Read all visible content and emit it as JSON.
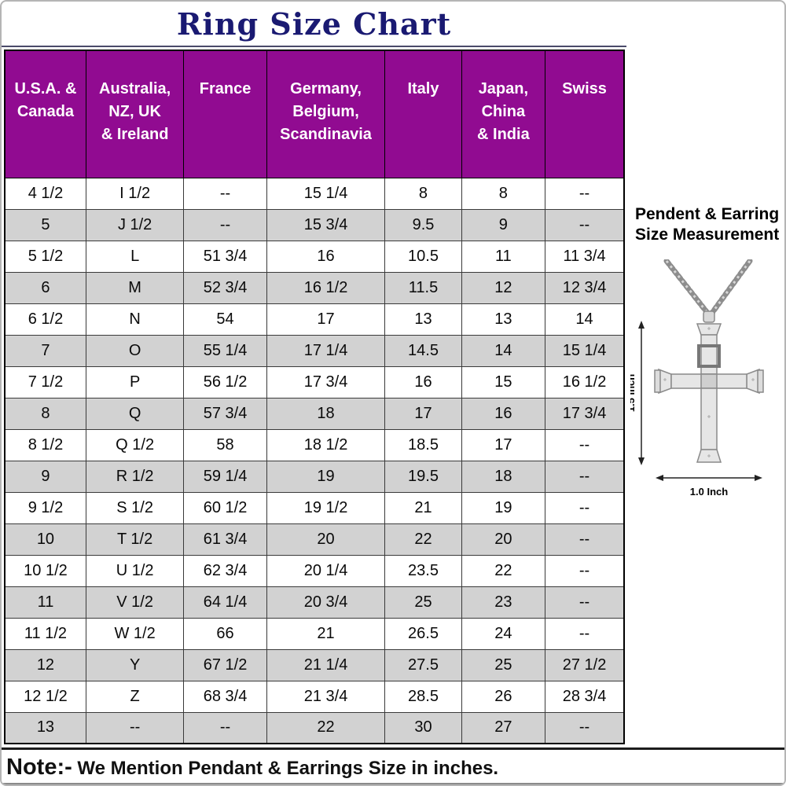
{
  "title": "Ring Size Chart",
  "table": {
    "headers": [
      "U.S.A. &\nCanada",
      "Australia,\nNZ, UK\n& Ireland",
      "France",
      "Germany,\nBelgium,\nScandinavia",
      "Italy",
      "Japan,\nChina\n& India",
      "Swiss"
    ],
    "rows": [
      [
        "4 1/2",
        "I 1/2",
        "--",
        "15 1/4",
        "8",
        "8",
        "--"
      ],
      [
        "5",
        "J 1/2",
        "--",
        "15 3/4",
        "9.5",
        "9",
        "--"
      ],
      [
        "5 1/2",
        "L",
        "51 3/4",
        "16",
        "10.5",
        "11",
        "11 3/4"
      ],
      [
        "6",
        "M",
        "52 3/4",
        "16 1/2",
        "11.5",
        "12",
        "12 3/4"
      ],
      [
        "6 1/2",
        "N",
        "54",
        "17",
        "13",
        "13",
        "14"
      ],
      [
        "7",
        "O",
        "55 1/4",
        "17 1/4",
        "14.5",
        "14",
        "15 1/4"
      ],
      [
        "7 1/2",
        "P",
        "56 1/2",
        "17 3/4",
        "16",
        "15",
        "16 1/2"
      ],
      [
        "8",
        "Q",
        "57 3/4",
        "18",
        "17",
        "16",
        "17 3/4"
      ],
      [
        "8 1/2",
        "Q 1/2",
        "58",
        "18 1/2",
        "18.5",
        "17",
        "--"
      ],
      [
        "9",
        "R 1/2",
        "59 1/4",
        "19",
        "19.5",
        "18",
        "--"
      ],
      [
        "9 1/2",
        "S 1/2",
        "60 1/2",
        "19 1/2",
        "21",
        "19",
        "--"
      ],
      [
        "10",
        "T 1/2",
        "61 3/4",
        "20",
        "22",
        "20",
        "--"
      ],
      [
        "10 1/2",
        "U 1/2",
        "62 3/4",
        "20 1/4",
        "23.5",
        "22",
        "--"
      ],
      [
        "11",
        "V 1/2",
        "64 1/4",
        "20 3/4",
        "25",
        "23",
        "--"
      ],
      [
        "11 1/2",
        "W 1/2",
        "66",
        "21",
        "26.5",
        "24",
        "--"
      ],
      [
        "12",
        "Y",
        "67 1/2",
        "21 1/4",
        "27.5",
        "25",
        "27 1/2"
      ],
      [
        "12 1/2",
        "Z",
        "68 3/4",
        "21 3/4",
        "28.5",
        "26",
        "28 3/4"
      ],
      [
        "13",
        "--",
        "--",
        "22",
        "30",
        "27",
        "--"
      ]
    ]
  },
  "note": {
    "prefix": "Note:-",
    "text": " We Mention Pendant & Earrings Size in inches."
  },
  "pendant": {
    "title_line1": "Pendent & Earring",
    "title_line2": "Size Measurement",
    "height_label": "1.5 Inch",
    "width_label": "1.0 Inch"
  },
  "colors": {
    "header_purple": "#910b91",
    "title_navy": "#1a1a72",
    "alt_row_gray": "#d2d2d2"
  }
}
